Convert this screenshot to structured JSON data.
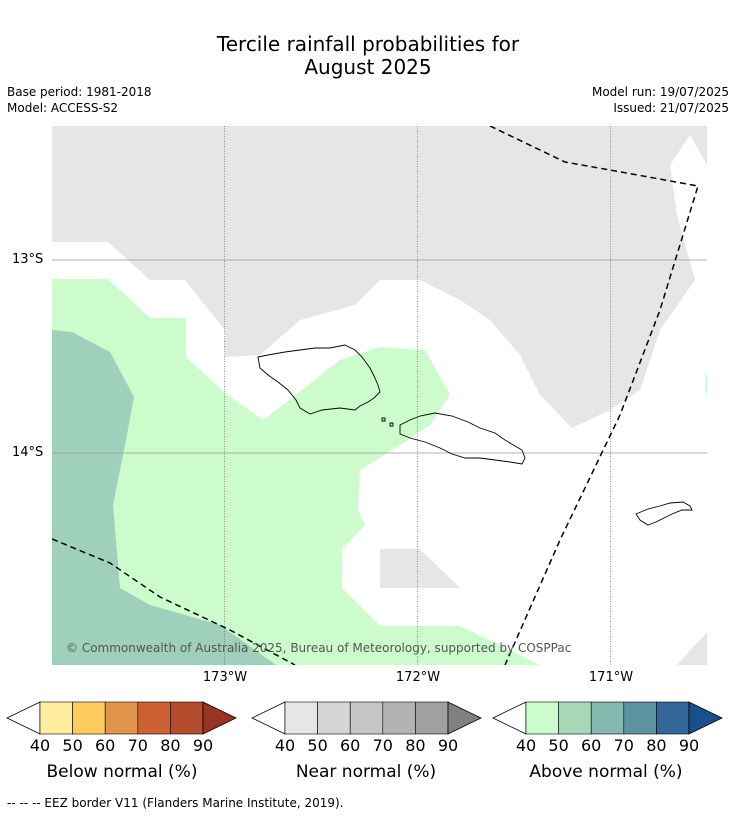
{
  "title_line1": "Tercile rainfall probabilities for",
  "title_line2": "August 2025",
  "base_period": "Base period: 1981-2018",
  "model": "Model: ACCESS-S2",
  "model_run": "Model run: 19/07/2025",
  "issued": "Issued: 21/07/2025",
  "copyright": "© Commonwealth of Australia 2025, Bureau of Meteorology, supported by COSPPac",
  "lat_labels": [
    "13°S",
    "14°S"
  ],
  "lon_labels": [
    "173°W",
    "172°W",
    "171°W"
  ],
  "colorbars": [
    {
      "label": "Below normal (%)",
      "ticks": [
        "40",
        "50",
        "60",
        "70",
        "80",
        "90"
      ],
      "colors": [
        "#ffeda0",
        "#fecc5c",
        "#e0954a",
        "#cc6233",
        "#b34d2b",
        "#9a3322"
      ]
    },
    {
      "label": "Near normal (%)",
      "ticks": [
        "40",
        "50",
        "60",
        "70",
        "80",
        "90"
      ],
      "colors": [
        "#e6e6e6",
        "#d6d6d6",
        "#c6c6c6",
        "#b3b3b3",
        "#a0a0a0",
        "#808080"
      ]
    },
    {
      "label": "Above normal (%)",
      "ticks": [
        "40",
        "50",
        "60",
        "70",
        "80",
        "90"
      ],
      "colors": [
        "#ccfccc",
        "#a6d8b8",
        "#82b8b0",
        "#5b93a0",
        "#336699",
        "#1a4f8a"
      ]
    }
  ],
  "footer": "--  --  -- EEZ border V11 (Flanders Marine Institute, 2019).",
  "colors": {
    "near_normal_40": "#e6e6e6",
    "above_normal_40": "#ccfccc",
    "above_normal_50": "#9fd0bc"
  }
}
